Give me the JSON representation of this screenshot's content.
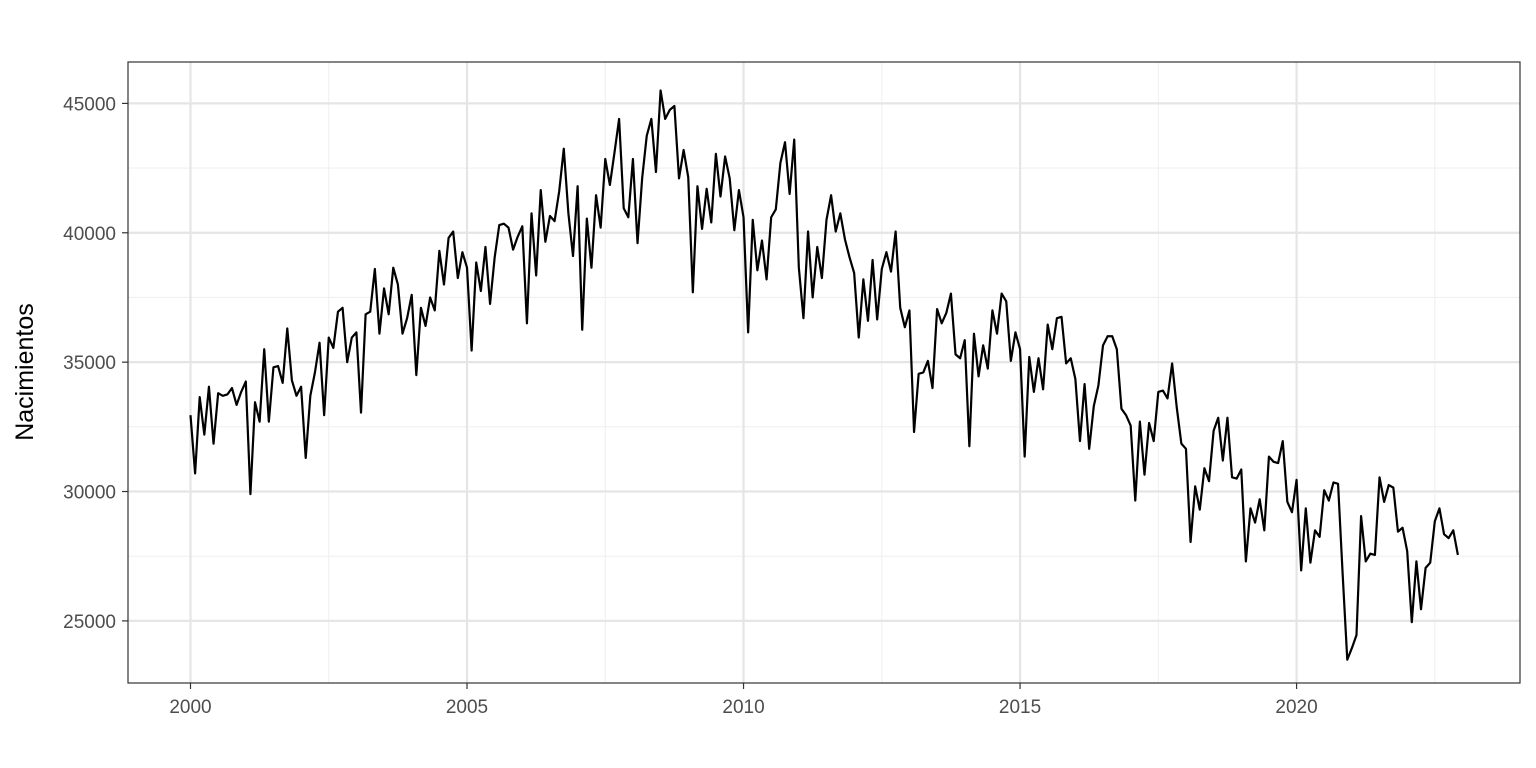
{
  "chart_data": {
    "type": "line",
    "title": "",
    "xlabel": "",
    "ylabel": "Nacimientos",
    "xlim": [
      1998.87,
      2024.04
    ],
    "ylim": [
      22600,
      46600
    ],
    "xticks": [
      2000,
      2005,
      2010,
      2015,
      2020
    ],
    "yticks": [
      25000,
      30000,
      35000,
      40000,
      45000
    ],
    "grid": true,
    "legend": "none",
    "line_color": "#000000",
    "start": {
      "year": 2000,
      "month": 1
    },
    "series": [
      {
        "values": [
          32950,
          30700,
          33650,
          32200,
          34050,
          31850,
          33800,
          33700,
          33750,
          34000,
          33350,
          33850,
          34250,
          29900,
          33450,
          32700,
          35500,
          32700,
          34800,
          34850,
          34200,
          36300,
          34300,
          33700,
          34050,
          31300,
          33700,
          34600,
          35750,
          32950,
          35950,
          35550,
          36950,
          37100,
          35000,
          35950,
          36150,
          33050,
          36850,
          36950,
          38600,
          36100,
          37850,
          36850,
          38650,
          38000,
          36100,
          36700,
          37600,
          34500,
          37100,
          36400,
          37500,
          37000,
          39300,
          38000,
          39800,
          40050,
          38250,
          39250,
          38650,
          35450,
          38850,
          37750,
          39450,
          37250,
          39050,
          40300,
          40350,
          40200,
          39350,
          39850,
          40250,
          36500,
          40750,
          38350,
          41650,
          39650,
          40650,
          40450,
          41600,
          43250,
          40750,
          39100,
          41800,
          36250,
          40550,
          38650,
          41450,
          40200,
          42850,
          41850,
          43100,
          44400,
          40950,
          40600,
          42850,
          39600,
          42100,
          43750,
          44400,
          42350,
          45500,
          44400,
          44750,
          44900,
          42100,
          43200,
          42150,
          37700,
          41800,
          40150,
          41700,
          40400,
          43050,
          41400,
          42950,
          42100,
          40100,
          41650,
          40600,
          36150,
          40500,
          38550,
          39700,
          38200,
          40600,
          40900,
          42700,
          43500,
          41500,
          43600,
          38650,
          36700,
          40050,
          37500,
          39450,
          38250,
          40500,
          41450,
          40050,
          40750,
          39750,
          39050,
          38450,
          35950,
          38200,
          36600,
          38950,
          36650,
          38600,
          39250,
          38500,
          40050,
          37100,
          36350,
          37000,
          32300,
          34550,
          34600,
          35050,
          34000,
          37050,
          36500,
          36900,
          37650,
          35300,
          35150,
          35850,
          31750,
          36100,
          34450,
          35650,
          34750,
          37000,
          36100,
          37650,
          37350,
          35050,
          36150,
          35500,
          31350,
          35200,
          33850,
          35150,
          33950,
          36450,
          35500,
          36700,
          36750,
          34950,
          35150,
          34350,
          31950,
          34150,
          31650,
          33300,
          34100,
          35650,
          36000,
          36000,
          35500,
          33200,
          32950,
          32550,
          29650,
          32700,
          30650,
          32650,
          31950,
          33850,
          33900,
          33600,
          34950,
          33250,
          31850,
          31650,
          28050,
          30200,
          29300,
          30900,
          30400,
          32350,
          32850,
          31200,
          32850,
          30550,
          30500,
          30850,
          27300,
          29350,
          28800,
          29700,
          28500,
          31350,
          31150,
          31100,
          31950,
          29600,
          29200,
          30450,
          26950,
          29350,
          27250,
          28500,
          28250,
          30050,
          29650,
          30350,
          30300,
          26800,
          23500,
          23950,
          24450,
          29050,
          27300,
          27600,
          27550,
          30550,
          29600,
          30250,
          30150,
          28450,
          28600,
          27700,
          24950,
          27300,
          25450,
          27050,
          27250,
          28850,
          29350,
          28350,
          28200,
          28500,
          27550
        ]
      }
    ]
  }
}
